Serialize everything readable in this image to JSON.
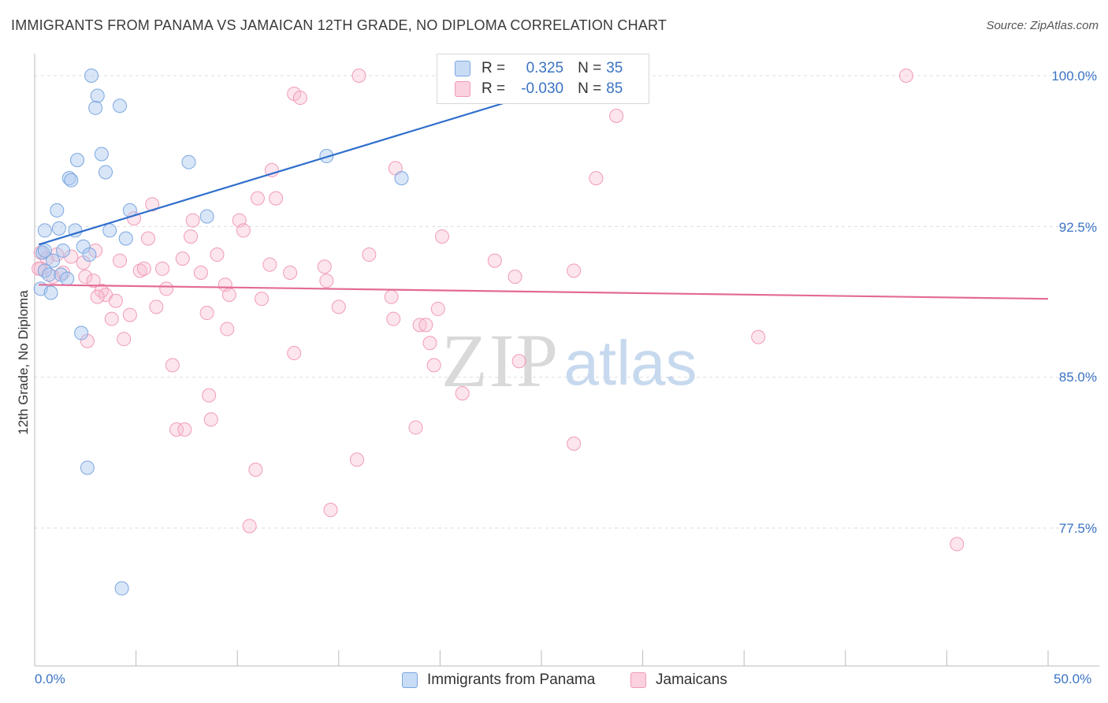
{
  "title": "IMMIGRANTS FROM PANAMA VS JAMAICAN 12TH GRADE, NO DIPLOMA CORRELATION CHART",
  "source": "Source: ZipAtlas.com",
  "watermark": {
    "zip": "ZIP",
    "atlas": "atlas"
  },
  "legend": {
    "rows": [
      {
        "r_label": "R =",
        "r_value": "0.325",
        "n_label": "N =",
        "n_value": "35",
        "color": "#7aa7e0"
      },
      {
        "r_label": "R =",
        "r_value": "-0.030",
        "n_label": "N =",
        "n_value": "85",
        "color": "#f19bb8"
      }
    ]
  },
  "bottom_legend": [
    "Immigrants from Panama",
    "Jamaicans"
  ],
  "y_axis_label": "12th Grade, No Diploma",
  "y_ticks": [
    "100.0%",
    "92.5%",
    "85.0%",
    "77.5%"
  ],
  "x_ticks": [
    "0.0%",
    "50.0%"
  ],
  "chart_data": {
    "type": "scatter",
    "xlim": [
      0,
      50
    ],
    "ylim": [
      71.5,
      101
    ],
    "xlabel": "",
    "ylabel": "12th Grade, No Diploma",
    "grid": true,
    "series": [
      {
        "name": "Immigrants from Panama",
        "color": "#7aa7e0",
        "trend": {
          "x": [
            0.2,
            27.6
          ],
          "y": [
            91.6,
            100
          ]
        },
        "points": [
          [
            2.8,
            100
          ],
          [
            3.1,
            99
          ],
          [
            3.0,
            98.4
          ],
          [
            4.2,
            98.5
          ],
          [
            3.3,
            96.1
          ],
          [
            2.1,
            95.8
          ],
          [
            3.5,
            95.2
          ],
          [
            7.6,
            95.7
          ],
          [
            14.4,
            96.0
          ],
          [
            18.1,
            94.9
          ],
          [
            1.7,
            94.9
          ],
          [
            1.8,
            94.8
          ],
          [
            1.1,
            93.3
          ],
          [
            4.7,
            93.3
          ],
          [
            8.5,
            93.0
          ],
          [
            0.5,
            92.3
          ],
          [
            1.2,
            92.4
          ],
          [
            2.0,
            92.3
          ],
          [
            3.7,
            92.3
          ],
          [
            4.5,
            91.9
          ],
          [
            0.4,
            91.2
          ],
          [
            1.4,
            91.3
          ],
          [
            2.4,
            91.5
          ],
          [
            2.7,
            91.1
          ],
          [
            0.9,
            90.8
          ],
          [
            0.5,
            90.3
          ],
          [
            0.7,
            90.1
          ],
          [
            1.3,
            90.1
          ],
          [
            1.6,
            89.9
          ],
          [
            0.3,
            89.4
          ],
          [
            0.8,
            89.2
          ],
          [
            2.3,
            87.2
          ],
          [
            2.6,
            80.5
          ],
          [
            4.3,
            74.5
          ],
          [
            0.5,
            91.3
          ]
        ]
      },
      {
        "name": "Jamaicans",
        "color": "#f19bb8",
        "trend": {
          "x": [
            0.2,
            50
          ],
          "y": [
            89.6,
            88.9
          ]
        },
        "points": [
          [
            16.0,
            100
          ],
          [
            43.0,
            100
          ],
          [
            27.6,
            100
          ],
          [
            12.8,
            99.1
          ],
          [
            13.1,
            98.9
          ],
          [
            28.7,
            98.0
          ],
          [
            11.7,
            95.3
          ],
          [
            17.8,
            95.4
          ],
          [
            27.7,
            94.9
          ],
          [
            11.0,
            93.9
          ],
          [
            11.9,
            93.9
          ],
          [
            5.8,
            93.6
          ],
          [
            4.9,
            92.9
          ],
          [
            7.8,
            92.8
          ],
          [
            10.1,
            92.8
          ],
          [
            10.3,
            92.3
          ],
          [
            20.1,
            92.0
          ],
          [
            5.6,
            91.9
          ],
          [
            7.7,
            92.0
          ],
          [
            3.0,
            91.3
          ],
          [
            9.0,
            91.1
          ],
          [
            16.5,
            91.1
          ],
          [
            1.1,
            91.1
          ],
          [
            1.8,
            91.0
          ],
          [
            0.6,
            90.9
          ],
          [
            2.4,
            90.7
          ],
          [
            4.2,
            90.8
          ],
          [
            6.3,
            90.4
          ],
          [
            7.3,
            90.9
          ],
          [
            11.6,
            90.6
          ],
          [
            14.3,
            90.5
          ],
          [
            22.7,
            90.8
          ],
          [
            26.6,
            90.3
          ],
          [
            0.3,
            90.4
          ],
          [
            1.4,
            90.2
          ],
          [
            2.5,
            90.0
          ],
          [
            5.2,
            90.3
          ],
          [
            8.2,
            90.2
          ],
          [
            12.6,
            90.2
          ],
          [
            14.4,
            89.8
          ],
          [
            23.7,
            90.0
          ],
          [
            2.9,
            89.8
          ],
          [
            0.9,
            90.0
          ],
          [
            5.4,
            90.4
          ],
          [
            9.4,
            89.6
          ],
          [
            6.5,
            89.4
          ],
          [
            3.3,
            89.3
          ],
          [
            3.5,
            89.1
          ],
          [
            3.1,
            89.0
          ],
          [
            9.6,
            89.1
          ],
          [
            11.2,
            88.9
          ],
          [
            17.6,
            89.0
          ],
          [
            4.0,
            88.8
          ],
          [
            6.0,
            88.5
          ],
          [
            8.5,
            88.2
          ],
          [
            15.0,
            88.5
          ],
          [
            19.9,
            88.4
          ],
          [
            4.7,
            88.1
          ],
          [
            3.8,
            87.9
          ],
          [
            17.7,
            87.9
          ],
          [
            19.0,
            87.6
          ],
          [
            19.3,
            87.6
          ],
          [
            9.5,
            87.4
          ],
          [
            2.6,
            86.8
          ],
          [
            4.4,
            86.9
          ],
          [
            19.5,
            86.7
          ],
          [
            35.7,
            87.0
          ],
          [
            12.8,
            86.2
          ],
          [
            6.8,
            85.6
          ],
          [
            19.7,
            85.6
          ],
          [
            23.9,
            85.8
          ],
          [
            8.6,
            84.1
          ],
          [
            21.1,
            84.2
          ],
          [
            7.0,
            82.4
          ],
          [
            7.4,
            82.4
          ],
          [
            8.7,
            82.9
          ],
          [
            18.8,
            82.5
          ],
          [
            26.6,
            81.7
          ],
          [
            15.9,
            80.9
          ],
          [
            10.9,
            80.4
          ],
          [
            14.6,
            78.4
          ],
          [
            10.6,
            77.6
          ],
          [
            45.5,
            76.7
          ],
          [
            0.3,
            91.2
          ],
          [
            0.2,
            90.4
          ]
        ]
      }
    ]
  }
}
